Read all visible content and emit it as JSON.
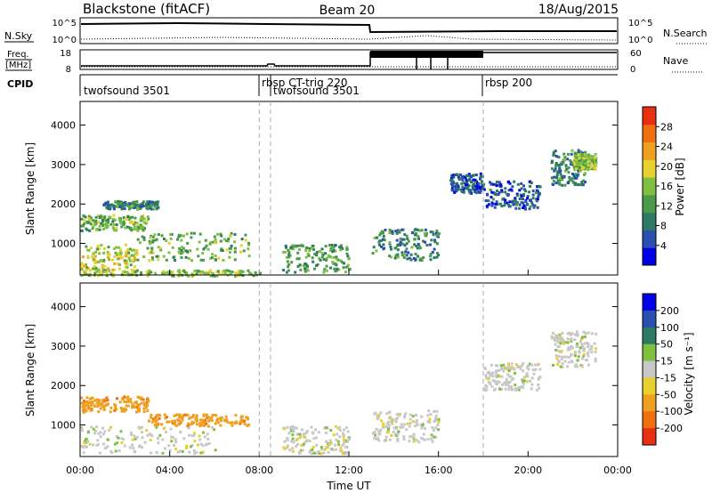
{
  "header": {
    "station": "Blackstone (fitACF)",
    "beam": "Beam 20",
    "date": "18/Aug/2015"
  },
  "status_panels": {
    "nsky_label": "N.Sky",
    "nsearch_label": "N.Search",
    "freq_label_line1": "Freq.",
    "freq_label_line2": "[MHz]",
    "nave_label": "Nave",
    "cpid_label": "CPID",
    "count_ticks": [
      "10^5",
      "10^0"
    ],
    "freq_ticks": [
      "18",
      "8"
    ],
    "nave_ticks": [
      "60",
      "0"
    ],
    "cpid_segments": [
      {
        "name": "twofsound 3501",
        "start_hour": 0.0
      },
      {
        "name": "rbsp CT-trig 220",
        "start_hour": 8.0
      },
      {
        "name": "twofsound 3501",
        "start_hour": 8.5
      },
      {
        "name": "rbsp 200",
        "start_hour": 18.0
      }
    ]
  },
  "chart_data": [
    {
      "type": "heatmap",
      "name": "power",
      "xlabel": "",
      "ylabel": "Slant Range [km]",
      "xlim": [
        0,
        24
      ],
      "ylim": [
        200,
        4600
      ],
      "y_ticks": [
        1000,
        2000,
        3000,
        4000
      ],
      "colorbar": {
        "label": "Power [dB]",
        "range": [
          0,
          32
        ],
        "ticks": [
          4,
          8,
          12,
          16,
          20,
          24,
          28
        ],
        "colors": [
          "#0000e6",
          "#2a4fb0",
          "#2c7a62",
          "#4a9a4a",
          "#7fc040",
          "#e8d030",
          "#f0a020",
          "#f07010",
          "#e83010"
        ]
      },
      "regions": [
        {
          "x": [
            0.0,
            2.5
          ],
          "y": [
            300,
            1000
          ],
          "level": 18
        },
        {
          "x": [
            0.0,
            3.0
          ],
          "y": [
            1350,
            1750
          ],
          "level": 14
        },
        {
          "x": [
            1.0,
            3.5
          ],
          "y": [
            1900,
            2100
          ],
          "level": 10
        },
        {
          "x": [
            2.5,
            7.5
          ],
          "y": [
            600,
            1300
          ],
          "level": 14
        },
        {
          "x": [
            0.0,
            8.0
          ],
          "y": [
            200,
            350
          ],
          "level": 16
        },
        {
          "x": [
            9.0,
            12.0
          ],
          "y": [
            300,
            1000
          ],
          "level": 12
        },
        {
          "x": [
            13.0,
            16.0
          ],
          "y": [
            600,
            1400
          ],
          "level": 10
        },
        {
          "x": [
            16.5,
            18.0
          ],
          "y": [
            2300,
            2800
          ],
          "level": 6
        },
        {
          "x": [
            18.0,
            20.5
          ],
          "y": [
            1900,
            2600
          ],
          "level": 6
        },
        {
          "x": [
            21.0,
            22.5
          ],
          "y": [
            2500,
            3400
          ],
          "level": 10
        },
        {
          "x": [
            22.0,
            23.0
          ],
          "y": [
            2900,
            3300
          ],
          "level": 16
        }
      ]
    },
    {
      "type": "heatmap",
      "name": "velocity",
      "xlabel": "Time UT",
      "ylabel": "Slant Range [km]",
      "xlim": [
        0,
        24
      ],
      "ylim": [
        200,
        4600
      ],
      "x_ticks": [
        "00:00",
        "04:00",
        "08:00",
        "12:00",
        "16:00",
        "20:00",
        "00:00"
      ],
      "y_ticks": [
        1000,
        2000,
        3000,
        4000
      ],
      "colorbar": {
        "label": "Velocity [m s⁻¹]",
        "tick_labels": [
          "200",
          "100",
          "50",
          "15",
          "-15",
          "-50",
          "-100",
          "-200"
        ],
        "colors": [
          "#0000e6",
          "#2a4fb0",
          "#2c7a62",
          "#7fc040",
          "#c8c8c8",
          "#e8d030",
          "#f0a020",
          "#f07010",
          "#e83010"
        ]
      },
      "regions": [
        {
          "x": [
            0.0,
            6.0
          ],
          "y": [
            300,
            1000
          ],
          "v": 0
        },
        {
          "x": [
            0.0,
            3.0
          ],
          "y": [
            1350,
            1750
          ],
          "v": -60
        },
        {
          "x": [
            3.0,
            7.5
          ],
          "y": [
            1000,
            1300
          ],
          "v": -60
        },
        {
          "x": [
            9.0,
            12.0
          ],
          "y": [
            300,
            1000
          ],
          "v": 0
        },
        {
          "x": [
            13.0,
            16.0
          ],
          "y": [
            600,
            1400
          ],
          "v": 0
        },
        {
          "x": [
            18.0,
            20.5
          ],
          "y": [
            1900,
            2600
          ],
          "v": 0
        },
        {
          "x": [
            21.0,
            23.0
          ],
          "y": [
            2500,
            3400
          ],
          "v": 0
        }
      ]
    }
  ]
}
